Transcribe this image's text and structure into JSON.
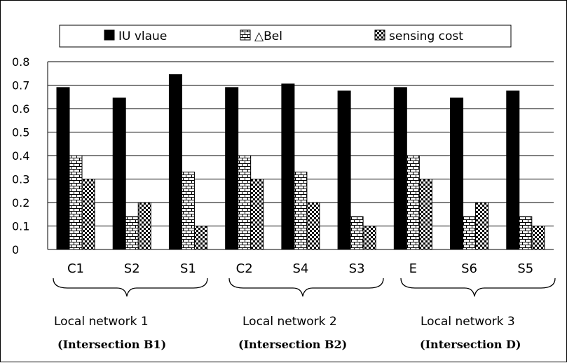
{
  "chart_data": {
    "type": "bar",
    "categories": [
      "C1",
      "S2",
      "S1",
      "C2",
      "S4",
      "S3",
      "E",
      "S6",
      "S5"
    ],
    "series": [
      {
        "name": "IU vlaue",
        "values": [
          0.69,
          0.645,
          0.745,
          0.69,
          0.705,
          0.675,
          0.69,
          0.645,
          0.675
        ],
        "pattern": "solid"
      },
      {
        "name": "△Bel",
        "values": [
          0.4,
          0.14,
          0.33,
          0.4,
          0.33,
          0.14,
          0.4,
          0.14,
          0.14
        ],
        "pattern": "brick"
      },
      {
        "name": "sensing cost",
        "values": [
          0.3,
          0.2,
          0.1,
          0.3,
          0.2,
          0.1,
          0.3,
          0.2,
          0.1
        ],
        "pattern": "checker"
      }
    ],
    "y_ticks": [
      "0",
      "0.1",
      "0.2",
      "0.3",
      "0.4",
      "0.5",
      "0.6",
      "0.7",
      "0.8"
    ],
    "ylim": [
      0,
      0.8
    ],
    "grid": true,
    "legend_position": "top",
    "groups": [
      {
        "label": "Local network 1",
        "sublabel": "(Intersection B1)"
      },
      {
        "label": "Local network 2",
        "sublabel": "(Intersection B2)"
      },
      {
        "label": "Local network 3",
        "sublabel": "(Intersection D)"
      }
    ],
    "colors": {
      "bar": "#000000",
      "background": "#ffffff"
    }
  }
}
